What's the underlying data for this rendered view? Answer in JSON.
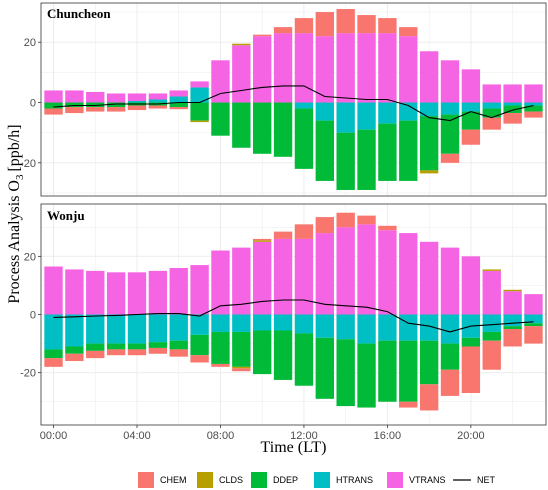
{
  "chart_data": {
    "type": "bar",
    "subtype": "stacked-bar-with-line",
    "xlabel": "Time (LT)",
    "ylabel": "Process Analysis O",
    "ylabel_sub": "3",
    "ylabel_unit": "[ppb/h]",
    "x_tick_labels": [
      "00:00",
      "04:00",
      "08:00",
      "12:00",
      "16:00",
      "20:00"
    ],
    "x_tick_hours": [
      0,
      4,
      8,
      12,
      16,
      20
    ],
    "legend": {
      "placement": "bottom",
      "entries": [
        {
          "name": "CHEM",
          "kind": "fill",
          "color": "#F8766D"
        },
        {
          "name": "CLDS",
          "kind": "fill",
          "color": "#B79F00"
        },
        {
          "name": "DDEP",
          "kind": "fill",
          "color": "#00BA38"
        },
        {
          "name": "HTRANS",
          "kind": "fill",
          "color": "#00BFC4"
        },
        {
          "name": "VTRANS",
          "kind": "fill",
          "color": "#F564E3"
        },
        {
          "name": "NET",
          "kind": "line",
          "color": "#000000"
        }
      ]
    },
    "grid": true,
    "hours": [
      0,
      1,
      2,
      3,
      4,
      5,
      6,
      7,
      8,
      9,
      10,
      11,
      12,
      13,
      14,
      15,
      16,
      17,
      18,
      19,
      20,
      21,
      22,
      23
    ],
    "panels": [
      {
        "title": "Chuncheon",
        "ylim": [
          -31,
          33
        ],
        "y_ticks": [
          -20,
          0,
          20
        ],
        "positive_order": [
          "HTRANS",
          "VTRANS",
          "CLDS",
          "CHEM"
        ],
        "negative_order": [
          "HTRANS",
          "DDEP",
          "CLDS",
          "CHEM"
        ],
        "series": {
          "VTRANS": [
            4,
            4,
            3.5,
            3,
            2.5,
            2,
            2,
            2,
            14,
            19,
            22,
            23,
            23,
            22,
            23,
            23,
            23,
            22,
            17,
            14,
            11,
            6,
            6,
            6
          ],
          "HTRANS": [
            0,
            0,
            0,
            0,
            0.5,
            1,
            2,
            5,
            0,
            0,
            0,
            0,
            -2,
            -6,
            -10,
            -9,
            -7,
            -6,
            -4.5,
            -4,
            -3,
            -2,
            -1,
            -1
          ],
          "DDEP": [
            -2,
            -1.5,
            -1.5,
            -1.5,
            -1,
            -1,
            -1.5,
            -6,
            -11,
            -15,
            -17,
            -18,
            -20,
            -20,
            -19,
            -20,
            -19,
            -20,
            -18,
            -13,
            -6,
            -3,
            -2.5,
            -2
          ],
          "CLDS": [
            0,
            0,
            0,
            0,
            0,
            0,
            0,
            -0.5,
            0,
            0.5,
            0,
            0,
            0,
            0,
            0,
            0,
            0,
            0,
            -1,
            0,
            0,
            0,
            0,
            0
          ],
          "CHEM": [
            -2,
            -2,
            -1.5,
            -1.5,
            -1.5,
            -1,
            -0.7,
            0,
            0,
            0,
            0.5,
            2,
            5,
            8,
            8,
            6,
            5,
            3,
            0,
            -3,
            -5,
            -4,
            -3.5,
            -2
          ],
          "NET": [
            -1.5,
            -1,
            -1,
            -0.5,
            -0.5,
            -0.5,
            0,
            0,
            3,
            4,
            5,
            5.5,
            5.5,
            2,
            1.5,
            1,
            1,
            -1,
            -5,
            -6,
            -3,
            -5,
            -2.5,
            -1
          ]
        }
      },
      {
        "title": "Wonju",
        "ylim": [
          -38,
          38
        ],
        "y_ticks": [
          -20,
          0,
          20
        ],
        "positive_order": [
          "HTRANS",
          "VTRANS",
          "CLDS",
          "CHEM"
        ],
        "negative_order": [
          "HTRANS",
          "DDEP",
          "CLDS",
          "CHEM"
        ],
        "series": {
          "VTRANS": [
            16.5,
            15.5,
            15,
            14.5,
            14.5,
            15,
            16,
            17,
            22,
            23,
            25,
            26,
            26,
            28,
            30,
            31,
            29,
            28,
            25,
            23,
            20,
            15,
            8,
            7
          ],
          "HTRANS": [
            -12,
            -11,
            -10,
            -10,
            -10,
            -9.5,
            -9,
            -7,
            -6,
            -6,
            -5.5,
            -5.5,
            -6.5,
            -8,
            -8.5,
            -10,
            -9,
            -9,
            -9,
            -10,
            -8,
            -6,
            -4,
            -3
          ],
          "DDEP": [
            -3,
            -2.5,
            -2.5,
            -2,
            -2,
            -2,
            -3,
            -7,
            -11,
            -12,
            -15,
            -17,
            -18,
            -21,
            -23,
            -22,
            -21,
            -21,
            -15,
            -9,
            -3,
            -3,
            -1,
            -1
          ],
          "CLDS": [
            0,
            0,
            0,
            0,
            0,
            0,
            0,
            0,
            0,
            -0.5,
            0.5,
            0,
            0,
            0,
            0,
            0,
            0,
            0,
            0,
            0,
            0,
            0.5,
            0.5,
            0
          ],
          "CHEM": [
            -3,
            -2.5,
            -2.5,
            -2,
            -2,
            -2,
            -2.5,
            -2.5,
            -1,
            -1,
            0.5,
            2.5,
            5,
            5.5,
            5,
            3,
            1.5,
            -2,
            -9,
            -9,
            -16,
            -10,
            -6,
            -6
          ],
          "NET": [
            -1,
            -0.8,
            -0.5,
            -0.3,
            0,
            0.3,
            0.3,
            -0.5,
            3,
            3.5,
            4.5,
            5,
            5,
            3.5,
            3,
            2.5,
            1,
            -3,
            -4,
            -6,
            -4,
            -3.5,
            -3,
            -2.5
          ]
        }
      }
    ]
  }
}
